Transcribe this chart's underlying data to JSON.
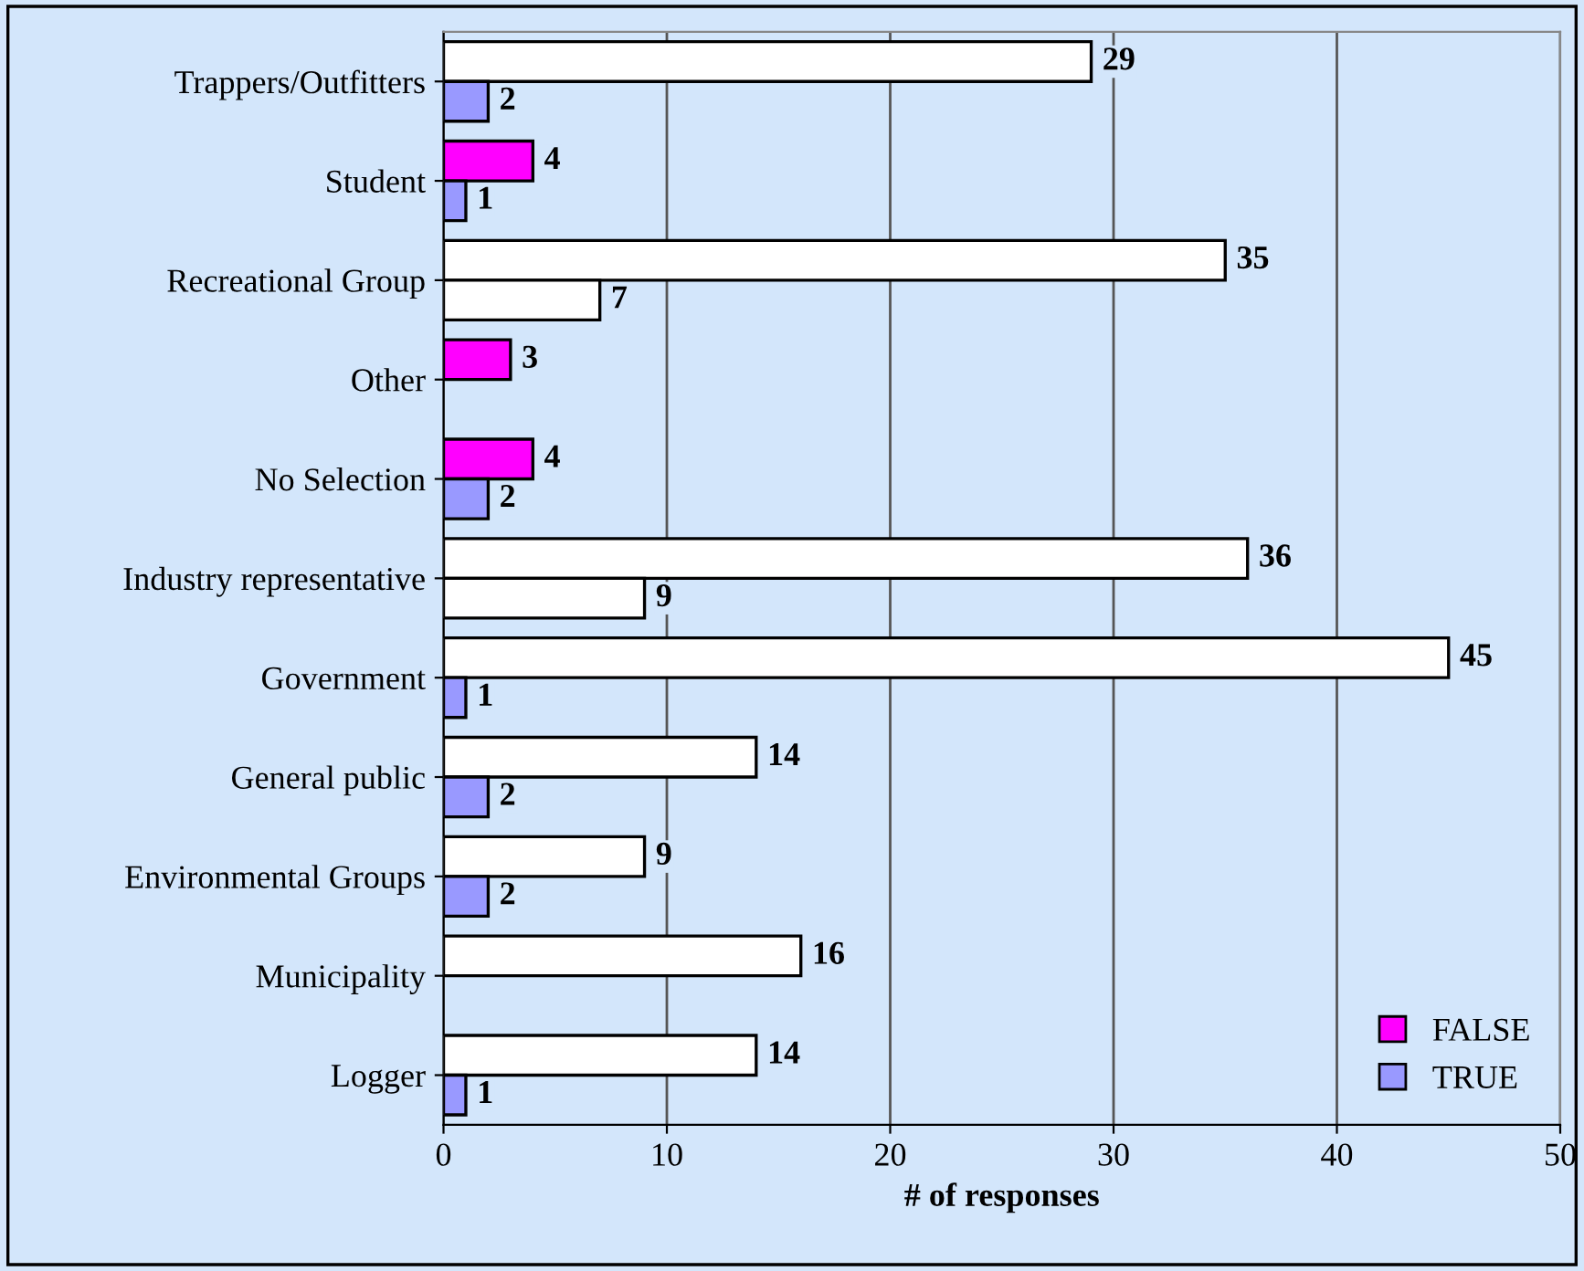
{
  "chart_data": {
    "type": "bar",
    "orientation": "horizontal",
    "xlabel": "# of responses",
    "categories": [
      "Trappers/Outfitters",
      "Student",
      "Recreational Group",
      "Other",
      "No Selection",
      "Industry representative",
      "Government",
      "General public",
      "Environmental Groups",
      "Municipality",
      "Logger"
    ],
    "series": [
      {
        "name": "FALSE",
        "color": "#ff00ff",
        "values": [
          29,
          4,
          35,
          3,
          4,
          36,
          45,
          14,
          9,
          16,
          14
        ],
        "colors": [
          "#ffffff",
          "#ff00ff",
          "#ffffff",
          "#ff00ff",
          "#ff00ff",
          "#ffffff",
          "#ffffff",
          "#ffffff",
          "#ffffff",
          "#ffffff",
          "#ffffff"
        ]
      },
      {
        "name": "TRUE",
        "color": "#9999ff",
        "values": [
          2,
          1,
          7,
          null,
          2,
          9,
          1,
          2,
          2,
          null,
          1
        ],
        "colors": [
          "#9999ff",
          "#9999ff",
          "#ffffff",
          null,
          "#9999ff",
          "#ffffff",
          "#9999ff",
          "#9999ff",
          "#9999ff",
          null,
          "#9999ff"
        ]
      }
    ],
    "xlim": [
      0,
      50
    ],
    "xticks": [
      0,
      10,
      20,
      30,
      40,
      50
    ],
    "grid": "x",
    "legend": "bottom right",
    "data_labels": true
  }
}
